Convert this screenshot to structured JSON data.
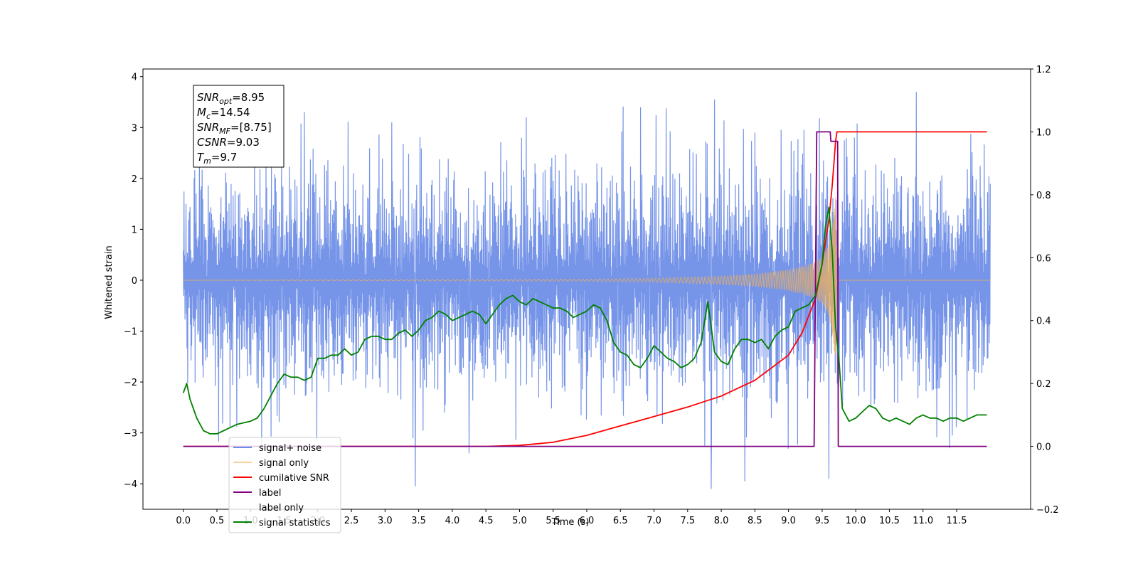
{
  "chart_data": {
    "type": "line",
    "title": "",
    "xlabel": "Time (s)",
    "ylabel": "Whitened strain",
    "y2label": "",
    "xlim": [
      -0.6,
      12.6
    ],
    "ylim": [
      -4.5,
      4.15
    ],
    "y2lim": [
      -0.2,
      1.2
    ],
    "x_ticks": [
      0.0,
      0.5,
      1.0,
      1.5,
      2.0,
      2.5,
      3.0,
      3.5,
      4.0,
      4.5,
      5.0,
      5.5,
      6.0,
      6.5,
      7.0,
      7.5,
      8.0,
      8.5,
      9.0,
      9.5,
      10.0,
      10.5,
      11.0,
      11.5
    ],
    "x_tick_labels": [
      "0.0",
      "0.5",
      "1.0",
      "1.5",
      "2.0",
      "2.5",
      "3.0",
      "3.5",
      "4.0",
      "4.5",
      "5.0",
      "5.5",
      "6.0",
      "6.5",
      "7.0",
      "7.5",
      "8.0",
      "8.5",
      "9.0",
      "9.5",
      "10.0",
      "10.5",
      "11.0",
      "11.5"
    ],
    "y_ticks": [
      -4,
      -3,
      -2,
      -1,
      0,
      1,
      2,
      3,
      4
    ],
    "y_tick_labels": [
      "−4",
      "−3",
      "−2",
      "−1",
      "0",
      "1",
      "2",
      "3",
      "4"
    ],
    "y2_ticks": [
      -0.2,
      0.0,
      0.2,
      0.4,
      0.6,
      0.8,
      1.0,
      1.2
    ],
    "y2_tick_labels": [
      "−0.2",
      "0.0",
      "0.2",
      "0.4",
      "0.6",
      "0.8",
      "1.0",
      "1.2"
    ],
    "grid": false,
    "legend_position": "lower-left",
    "series": [
      {
        "name": "signal+ noise",
        "axis": "left",
        "color": "#6a8be6",
        "description_of_values": "noisy whitened strain, approx. uniform band between -2.3 and 2.3 with spikes up to 3.7 and down to -4.1",
        "x_range": [
          0.0,
          12.0
        ],
        "envelope": [
          -2.3,
          2.3
        ],
        "peaks_high": [
          [
            1.8,
            3.3
          ],
          [
            3.1,
            3.1
          ],
          [
            5.1,
            3.2
          ],
          [
            6.8,
            3.4
          ],
          [
            7.9,
            3.55
          ],
          [
            10.9,
            3.7
          ]
        ],
        "peaks_low": [
          [
            3.45,
            -4.05
          ],
          [
            4.25,
            -3.4
          ],
          [
            7.85,
            -4.1
          ],
          [
            8.35,
            -3.95
          ],
          [
            9.6,
            -3.9
          ]
        ]
      },
      {
        "name": "signal only",
        "axis": "left",
        "color": "#f0b25a",
        "description_of_values": "chirp waveform, near-zero amplitude growing toward merger at ~9.7 s",
        "x": [
          0.0,
          6.0,
          7.0,
          8.0,
          8.5,
          9.0,
          9.2,
          9.4,
          9.5,
          9.55,
          9.6,
          9.65,
          9.7,
          9.72,
          12.0
        ],
        "amplitude": [
          0.0,
          0.02,
          0.04,
          0.08,
          0.12,
          0.2,
          0.26,
          0.36,
          0.45,
          0.55,
          0.7,
          1.0,
          1.7,
          0.0,
          0.0
        ]
      },
      {
        "name": "cumilative SNR",
        "axis": "right",
        "color": "#ff0000",
        "x": [
          0.0,
          4.5,
          5.0,
          5.5,
          6.0,
          6.5,
          7.0,
          7.5,
          8.0,
          8.5,
          9.0,
          9.2,
          9.4,
          9.5,
          9.6,
          9.65,
          9.7,
          9.72,
          11.95
        ],
        "y": [
          0.0,
          0.0,
          0.003,
          0.013,
          0.035,
          0.065,
          0.095,
          0.125,
          0.16,
          0.21,
          0.29,
          0.36,
          0.47,
          0.58,
          0.72,
          0.83,
          0.97,
          1.0,
          1.0
        ]
      },
      {
        "name": "label",
        "axis": "right",
        "color": "#800080",
        "x": [
          0.0,
          9.38,
          9.42,
          9.62,
          9.63,
          9.73,
          9.74,
          11.95
        ],
        "y": [
          0.0,
          0.0,
          1.0,
          1.0,
          0.97,
          0.97,
          0.0,
          0.0
        ]
      },
      {
        "name": "label only",
        "axis": "right",
        "color": "#ffffff",
        "x": [],
        "y": []
      },
      {
        "name": "signal statistics",
        "axis": "right",
        "color": "#008000",
        "x": [
          0.0,
          0.05,
          0.1,
          0.2,
          0.3,
          0.4,
          0.5,
          0.6,
          0.7,
          0.8,
          0.9,
          1.0,
          1.1,
          1.2,
          1.3,
          1.4,
          1.5,
          1.6,
          1.7,
          1.8,
          1.9,
          2.0,
          2.1,
          2.2,
          2.3,
          2.4,
          2.5,
          2.6,
          2.7,
          2.8,
          2.9,
          3.0,
          3.1,
          3.2,
          3.3,
          3.4,
          3.5,
          3.6,
          3.7,
          3.8,
          3.9,
          4.0,
          4.1,
          4.2,
          4.3,
          4.4,
          4.5,
          4.6,
          4.7,
          4.8,
          4.9,
          5.0,
          5.1,
          5.2,
          5.3,
          5.4,
          5.5,
          5.6,
          5.7,
          5.8,
          5.9,
          6.0,
          6.1,
          6.2,
          6.3,
          6.4,
          6.5,
          6.6,
          6.7,
          6.8,
          6.9,
          7.0,
          7.1,
          7.2,
          7.3,
          7.4,
          7.5,
          7.6,
          7.7,
          7.8,
          7.9,
          8.0,
          8.1,
          8.2,
          8.3,
          8.4,
          8.5,
          8.6,
          8.7,
          8.8,
          8.9,
          9.0,
          9.1,
          9.2,
          9.3,
          9.4,
          9.5,
          9.55,
          9.6,
          9.65,
          9.7,
          9.75,
          9.8,
          9.9,
          10.0,
          10.1,
          10.2,
          10.3,
          10.4,
          10.5,
          10.6,
          10.7,
          10.8,
          10.9,
          11.0,
          11.1,
          11.2,
          11.3,
          11.4,
          11.5,
          11.6,
          11.7,
          11.8,
          11.9,
          11.95
        ],
        "y": [
          0.17,
          0.2,
          0.15,
          0.09,
          0.05,
          0.04,
          0.04,
          0.05,
          0.06,
          0.07,
          0.075,
          0.08,
          0.09,
          0.12,
          0.16,
          0.2,
          0.23,
          0.22,
          0.22,
          0.21,
          0.22,
          0.28,
          0.28,
          0.29,
          0.29,
          0.31,
          0.29,
          0.3,
          0.34,
          0.35,
          0.35,
          0.34,
          0.34,
          0.36,
          0.37,
          0.35,
          0.37,
          0.4,
          0.41,
          0.43,
          0.42,
          0.4,
          0.41,
          0.42,
          0.43,
          0.42,
          0.39,
          0.42,
          0.45,
          0.47,
          0.48,
          0.46,
          0.45,
          0.47,
          0.46,
          0.45,
          0.44,
          0.44,
          0.43,
          0.41,
          0.42,
          0.43,
          0.45,
          0.44,
          0.4,
          0.33,
          0.3,
          0.29,
          0.26,
          0.25,
          0.28,
          0.32,
          0.3,
          0.28,
          0.27,
          0.25,
          0.26,
          0.28,
          0.33,
          0.46,
          0.3,
          0.27,
          0.26,
          0.31,
          0.34,
          0.34,
          0.33,
          0.34,
          0.31,
          0.35,
          0.37,
          0.38,
          0.43,
          0.44,
          0.45,
          0.48,
          0.58,
          0.7,
          0.76,
          0.62,
          0.38,
          0.28,
          0.12,
          0.08,
          0.09,
          0.11,
          0.13,
          0.12,
          0.09,
          0.08,
          0.09,
          0.08,
          0.07,
          0.09,
          0.1,
          0.09,
          0.09,
          0.08,
          0.09,
          0.09,
          0.08,
          0.09,
          0.1,
          0.1,
          0.1
        ]
      }
    ],
    "annotation": {
      "lines": [
        {
          "name": "SNR",
          "sub": "opt",
          "value": "=8.95"
        },
        {
          "name": "M",
          "sub": "c",
          "value": "=14.54"
        },
        {
          "name": "SNR",
          "sub": "MF",
          "value": "=[8.75]"
        },
        {
          "name": "CSNR",
          "sub": "",
          "value": "=9.03"
        },
        {
          "name": "T",
          "sub": "m",
          "value": "=9.7"
        }
      ]
    }
  }
}
